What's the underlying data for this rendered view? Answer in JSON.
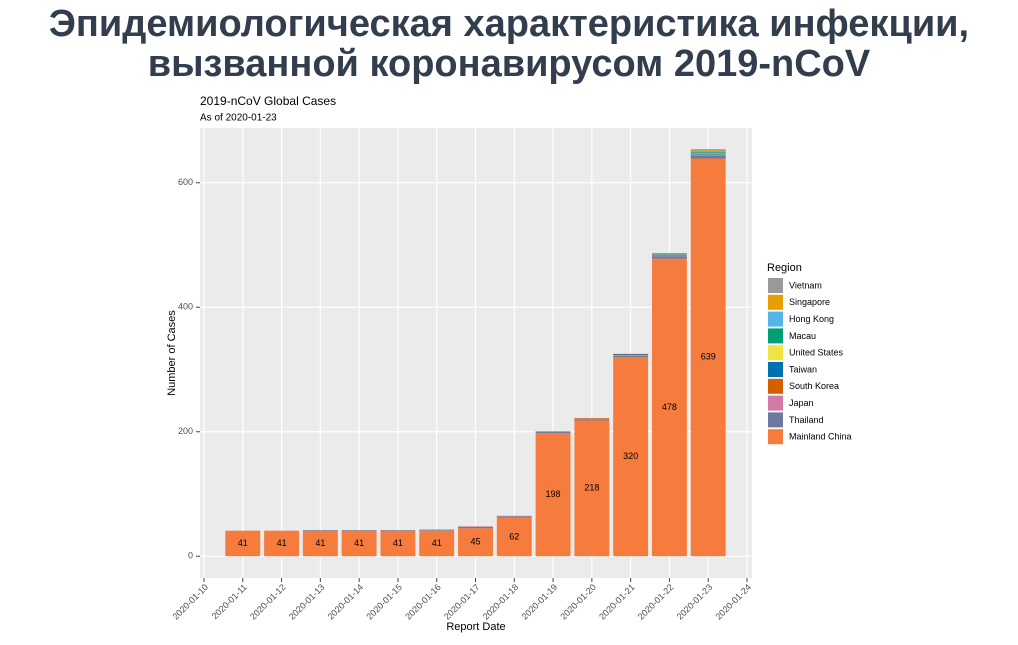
{
  "heading": "Эпидемиологическая характеристика инфекции, вызванной коронавирусом 2019-nCoV",
  "chart_data": {
    "type": "bar",
    "stacked": true,
    "title": "2019-nCoV Global Cases",
    "subtitle": "As of 2020-01-23",
    "x_label": "Report Date",
    "y_label": "Number of Cases",
    "legend_title": "Region",
    "legend_position": "right",
    "grid": true,
    "x": [
      "2020-01-11",
      "2020-01-12",
      "2020-01-13",
      "2020-01-14",
      "2020-01-15",
      "2020-01-16",
      "2020-01-17",
      "2020-01-18",
      "2020-01-19",
      "2020-01-20",
      "2020-01-21",
      "2020-01-22",
      "2020-01-23"
    ],
    "xlim": [
      "2020-01-10",
      "2020-01-24"
    ],
    "xticks": [
      "2020-01-10",
      "2020-01-11",
      "2020-01-12",
      "2020-01-13",
      "2020-01-14",
      "2020-01-15",
      "2020-01-16",
      "2020-01-17",
      "2020-01-18",
      "2020-01-19",
      "2020-01-20",
      "2020-01-21",
      "2020-01-22",
      "2020-01-23",
      "2020-01-24"
    ],
    "ylim": [
      -35,
      688
    ],
    "yticks": [
      0,
      200,
      400,
      600
    ],
    "series": [
      {
        "name": "Mainland China",
        "color": "#f67c3d",
        "values": [
          41,
          41,
          41,
          41,
          41,
          41,
          45,
          62,
          198,
          218,
          320,
          478,
          639
        ]
      },
      {
        "name": "Thailand",
        "color": "#6e7a9d",
        "values": [
          0,
          0,
          1,
          1,
          1,
          1,
          2,
          2,
          2,
          2,
          2,
          4,
          4
        ]
      },
      {
        "name": "Japan",
        "color": "#d17aa8",
        "values": [
          0,
          0,
          0,
          0,
          0,
          1,
          1,
          1,
          1,
          1,
          1,
          1,
          1
        ]
      },
      {
        "name": "South Korea",
        "color": "#d55e00",
        "values": [
          0,
          0,
          0,
          0,
          0,
          0,
          0,
          0,
          0,
          1,
          1,
          1,
          1
        ]
      },
      {
        "name": "Taiwan",
        "color": "#0072b2",
        "values": [
          0,
          0,
          0,
          0,
          0,
          0,
          0,
          0,
          0,
          0,
          1,
          1,
          1
        ]
      },
      {
        "name": "United States",
        "color": "#f0e442",
        "values": [
          0,
          0,
          0,
          0,
          0,
          0,
          0,
          0,
          0,
          0,
          1,
          1,
          1
        ]
      },
      {
        "name": "Macau",
        "color": "#009e73",
        "values": [
          0,
          0,
          0,
          0,
          0,
          0,
          0,
          0,
          0,
          0,
          0,
          1,
          2
        ]
      },
      {
        "name": "Hong Kong",
        "color": "#56b4e9",
        "values": [
          0,
          0,
          0,
          0,
          0,
          0,
          0,
          0,
          0,
          0,
          0,
          0,
          2
        ]
      },
      {
        "name": "Singapore",
        "color": "#e69f00",
        "values": [
          0,
          0,
          0,
          0,
          0,
          0,
          0,
          0,
          0,
          0,
          0,
          0,
          1
        ]
      },
      {
        "name": "Vietnam",
        "color": "#999999",
        "values": [
          0,
          0,
          0,
          0,
          0,
          0,
          0,
          0,
          0,
          0,
          0,
          0,
          2
        ]
      }
    ]
  }
}
